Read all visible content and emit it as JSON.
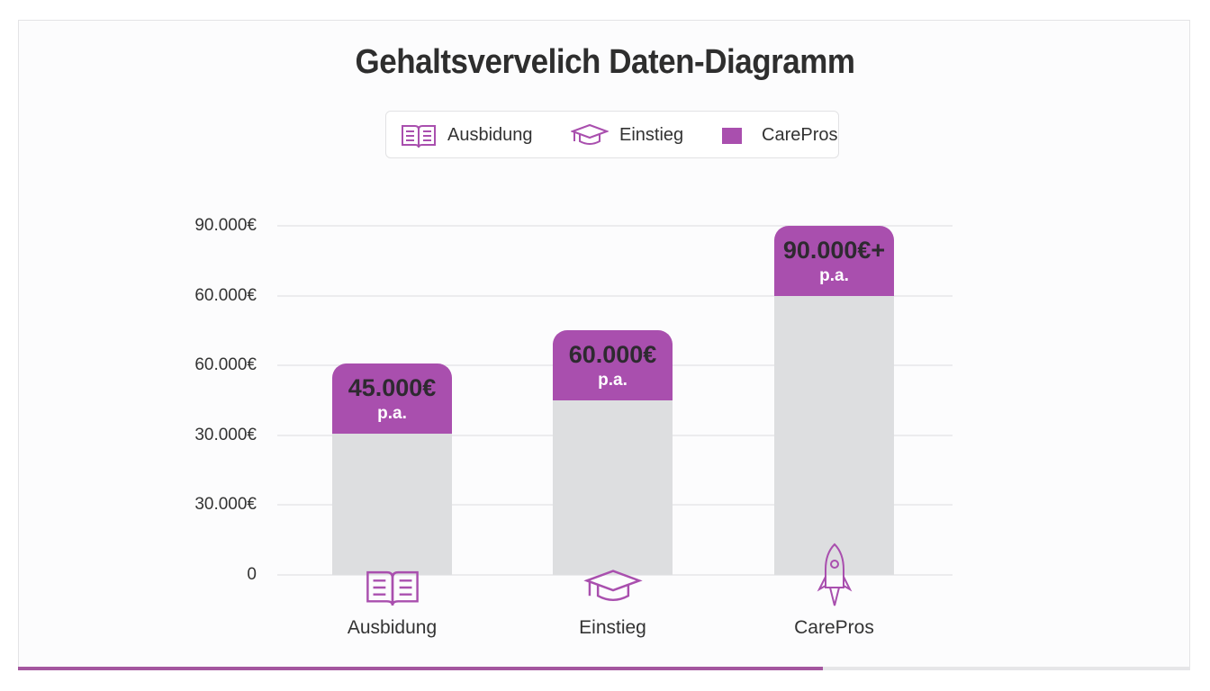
{
  "chart_data": {
    "type": "bar",
    "title": "Gehaltsvervelich Daten-Diagramm",
    "legend": [
      {
        "label": "Ausbidung",
        "icon": "book-icon"
      },
      {
        "label": "Einstieg",
        "icon": "graduation-cap-icon"
      },
      {
        "label": "CarePros",
        "icon": "square-swatch"
      }
    ],
    "legend_placement": "top-center",
    "y_tick_labels": [
      "0",
      "30.000€",
      "30.000€",
      "60.000€",
      "60.000€",
      "90.000€"
    ],
    "grid": true,
    "categories": [
      "Ausbidung",
      "Einstieg",
      "CarePros"
    ],
    "category_icons": [
      "book-icon",
      "graduation-cap-icon",
      "rocket-icon"
    ],
    "values": [
      45000,
      60000,
      90000
    ],
    "data_labels": [
      "45.000€",
      "60.000€",
      "90.000€+"
    ],
    "data_sublabel": "p.a.",
    "colors": {
      "accent": "#a94fae",
      "bar": "#dddee0"
    }
  },
  "progress": {
    "fraction": 0.687,
    "color": "#a4569f"
  }
}
